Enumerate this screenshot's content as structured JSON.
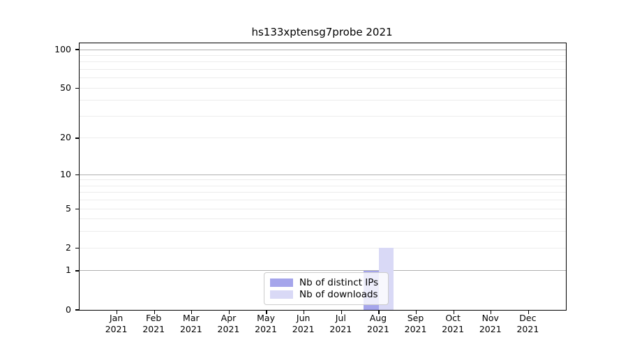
{
  "figure": {
    "title": "hs133xptensg7probe 2021"
  },
  "chart_data": {
    "type": "bar",
    "title": "hs133xptensg7probe 2021",
    "categories": [
      "Jan 2021",
      "Feb 2021",
      "Mar 2021",
      "Apr 2021",
      "May 2021",
      "Jun 2021",
      "Jul 2021",
      "Aug 2021",
      "Sep 2021",
      "Oct 2021",
      "Nov 2021",
      "Dec 2021"
    ],
    "series": [
      {
        "name": "Nb of distinct IPs",
        "color": "#a5a5eb",
        "values": [
          0,
          0,
          0,
          0,
          0,
          0,
          0,
          1,
          0,
          0,
          0,
          0
        ]
      },
      {
        "name": "Nb of downloads",
        "color": "#d9d9f6",
        "values": [
          0,
          0,
          0,
          0,
          0,
          0,
          0,
          2,
          0,
          0,
          0,
          0
        ]
      }
    ],
    "xlabel": "",
    "ylabel": "",
    "yscale": "log1p",
    "ylim": [
      0,
      112
    ],
    "ytick_values": [
      0,
      1,
      2,
      5,
      10,
      20,
      50,
      100
    ],
    "major_grid_values": [
      1,
      10,
      100
    ],
    "minor_grid_values": [
      2,
      3,
      4,
      5,
      6,
      7,
      8,
      9,
      20,
      30,
      40,
      50,
      60,
      70,
      80,
      90
    ],
    "grid": "horizontal",
    "legend_position": "inside-bottom-center"
  },
  "colors": {
    "major_grid": "#b0b0b0",
    "minor_grid": "#ececec",
    "axis": "#000000",
    "legend_border": "#cccccc"
  }
}
